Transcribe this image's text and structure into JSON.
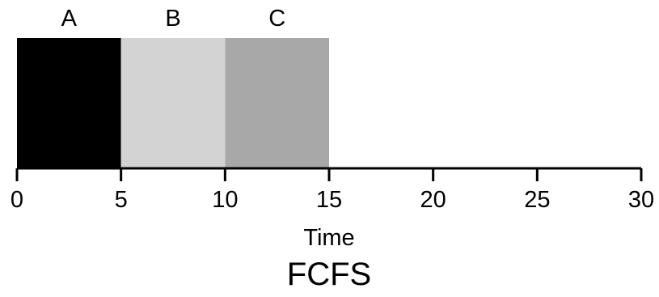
{
  "chart_data": {
    "type": "bar",
    "subtype": "gantt",
    "title": "FCFS",
    "xlabel": "Time",
    "ylabel": "",
    "xlim": [
      0,
      30
    ],
    "x_ticks": [
      0,
      5,
      10,
      15,
      20,
      25,
      30
    ],
    "grid": false,
    "legend": "none",
    "series": [
      {
        "name": "A",
        "start": 0,
        "end": 5,
        "color": "#000000"
      },
      {
        "name": "B",
        "start": 5,
        "end": 10,
        "color": "#d3d3d3"
      },
      {
        "name": "C",
        "start": 10,
        "end": 15,
        "color": "#a8a8a8"
      }
    ]
  }
}
